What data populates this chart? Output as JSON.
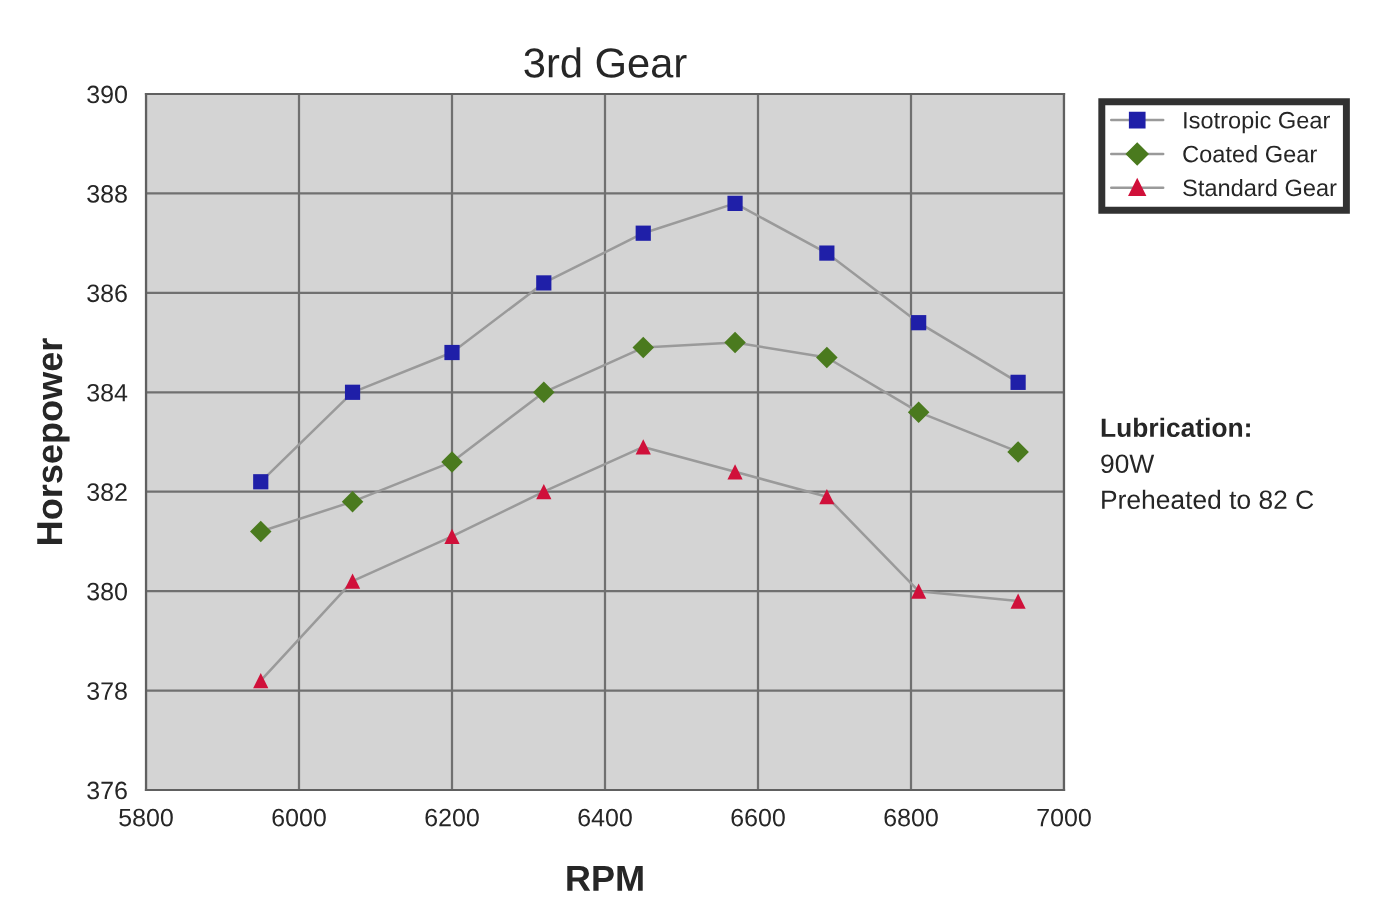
{
  "chart_data": {
    "type": "line",
    "title": "3rd Gear",
    "xlabel": "RPM",
    "ylabel": "Horsepower",
    "x": [
      5950,
      6070,
      6200,
      6320,
      6450,
      6570,
      6690,
      6810,
      6940
    ],
    "series": [
      {
        "name": "Isotropic Gear",
        "color": "#1f1fa8",
        "marker": "square",
        "values": [
          382.2,
          384.0,
          384.8,
          386.2,
          387.2,
          387.8,
          386.8,
          385.4,
          384.2
        ]
      },
      {
        "name": "Coated Gear",
        "color": "#4a7a1e",
        "marker": "diamond",
        "values": [
          381.2,
          381.8,
          382.6,
          384.0,
          384.9,
          385.0,
          384.7,
          383.6,
          382.8
        ]
      },
      {
        "name": "Standard Gear",
        "color": "#d0103a",
        "marker": "triangle",
        "values": [
          378.2,
          380.2,
          381.1,
          382.0,
          382.9,
          382.4,
          381.9,
          380.0,
          379.8
        ]
      }
    ],
    "xlim": [
      5800,
      7000
    ],
    "xticks": [
      5800,
      6000,
      6200,
      6400,
      6600,
      6800,
      7000
    ],
    "ylim": [
      376,
      390
    ],
    "yticks": [
      376,
      378,
      380,
      382,
      384,
      386,
      388,
      390
    ],
    "grid": true,
    "legend": "top right",
    "line_style": "solid",
    "annotations": [
      "Lubrication:",
      "90W",
      "Preheated to 82 C"
    ]
  }
}
